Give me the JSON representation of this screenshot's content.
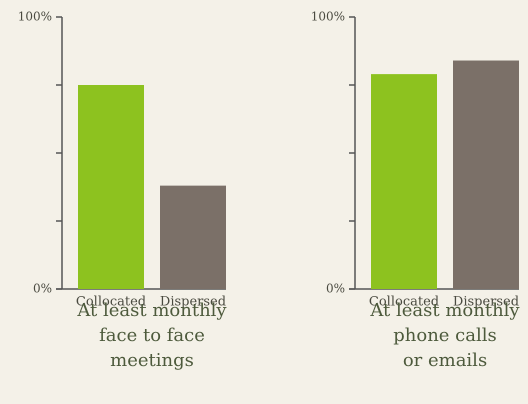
{
  "chart_data": [
    {
      "type": "bar",
      "title": [
        "At least monthly",
        "face to face",
        "meetings"
      ],
      "categories": [
        "Collocated",
        "Dispersed"
      ],
      "values": [
        75,
        38
      ],
      "colors": [
        "#8dc21f",
        "#7b7068"
      ],
      "ylim": [
        0,
        100
      ],
      "yticks": [
        {
          "value": 0,
          "label": "0%"
        },
        {
          "value": 25,
          "label": null
        },
        {
          "value": 50,
          "label": null
        },
        {
          "value": 75,
          "label": null
        },
        {
          "value": 100,
          "label": "100%"
        }
      ]
    },
    {
      "type": "bar",
      "title": [
        "At least monthly",
        "phone calls",
        "or emails"
      ],
      "categories": [
        "Collocated",
        "Dispersed"
      ],
      "values": [
        79,
        84
      ],
      "colors": [
        "#8dc21f",
        "#7b7068"
      ],
      "ylim": [
        0,
        100
      ],
      "yticks": [
        {
          "value": 0,
          "label": "0%"
        },
        {
          "value": 25,
          "label": null
        },
        {
          "value": 50,
          "label": null
        },
        {
          "value": 75,
          "label": null
        },
        {
          "value": 100,
          "label": "100%"
        }
      ]
    }
  ]
}
